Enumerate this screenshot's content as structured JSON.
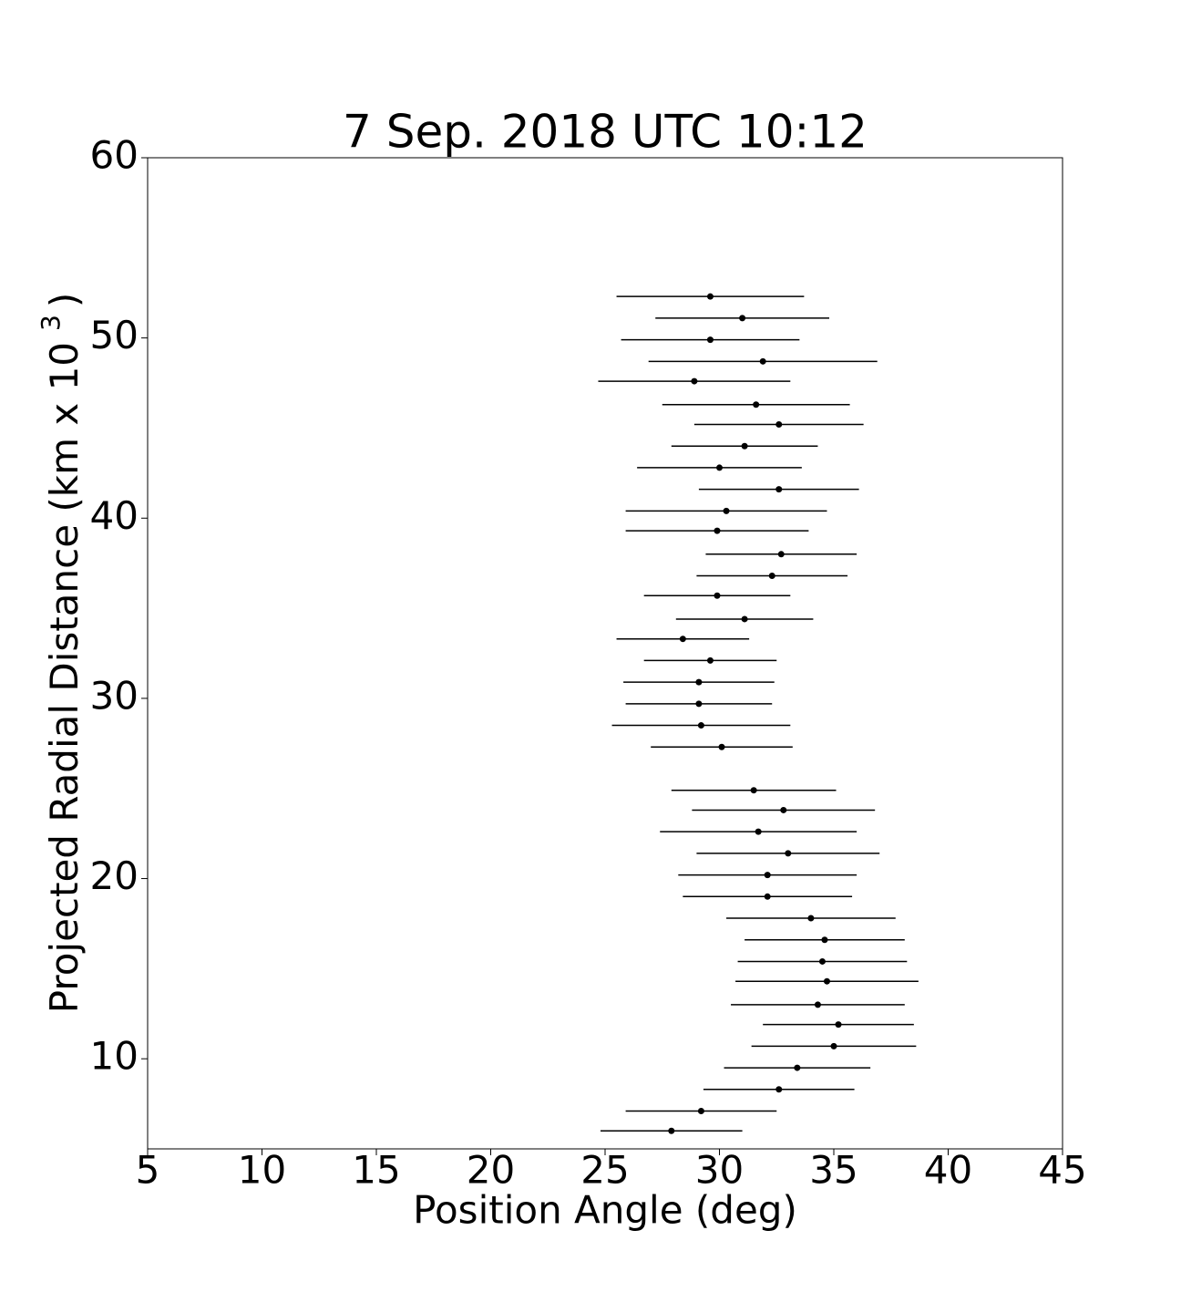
{
  "chart_data": {
    "type": "scatter",
    "title": "7 Sep. 2018 UTC 10:12",
    "xlabel": "Position Angle (deg)",
    "ylabel": {
      "text": "Projected Radial Distance (km x 10",
      "superscript": "3",
      "close": ")"
    },
    "xlim": [
      5,
      45
    ],
    "xticks": [
      5,
      10,
      15,
      20,
      25,
      30,
      35,
      40,
      45
    ],
    "ylim": [
      5,
      60
    ],
    "yticks": [
      10,
      20,
      30,
      40,
      50,
      60
    ],
    "grid": false,
    "series": [
      {
        "color": "#000000",
        "x": [
          29.6,
          31.0,
          29.6,
          31.9,
          28.9,
          31.6,
          32.6,
          31.1,
          30.0,
          32.6,
          30.3,
          29.9,
          32.7,
          32.3,
          29.9,
          31.1,
          28.4,
          29.6,
          29.1,
          29.1,
          29.2,
          30.1,
          31.5,
          32.8,
          31.7,
          33.0,
          32.1,
          32.1,
          34.0,
          34.6,
          34.5,
          34.7,
          34.3,
          35.2,
          35.0,
          33.4,
          32.6,
          29.2,
          27.9
        ],
        "values": [
          52.3,
          51.1,
          49.9,
          48.7,
          47.6,
          46.3,
          45.2,
          44.0,
          42.8,
          41.6,
          40.4,
          39.3,
          38.0,
          36.8,
          35.7,
          34.4,
          33.3,
          32.1,
          30.9,
          29.7,
          28.5,
          27.3,
          24.9,
          23.8,
          22.6,
          21.4,
          20.2,
          19.0,
          17.8,
          16.6,
          15.4,
          14.3,
          13.0,
          11.9,
          10.7,
          9.5,
          8.3,
          7.1,
          6.0
        ],
        "xerr": [
          4.1,
          3.8,
          3.9,
          5.0,
          4.2,
          4.1,
          3.7,
          3.2,
          3.6,
          3.5,
          4.4,
          4.0,
          3.3,
          3.3,
          3.2,
          3.0,
          2.9,
          2.9,
          3.3,
          3.2,
          3.9,
          3.1,
          3.6,
          4.0,
          4.3,
          4.0,
          3.9,
          3.7,
          3.7,
          3.5,
          3.7,
          4.0,
          3.8,
          3.3,
          3.6,
          3.2,
          3.3,
          3.3,
          3.1
        ]
      }
    ]
  }
}
